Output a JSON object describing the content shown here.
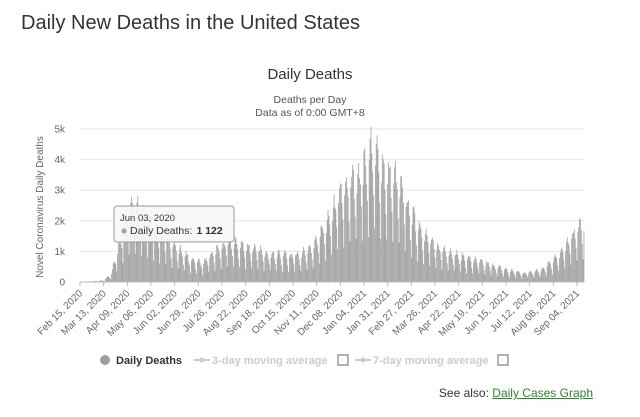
{
  "page": {
    "title": "Daily New Deaths in the United States",
    "see_also_prefix": "See also:",
    "see_also_link": "Daily Cases Graph"
  },
  "colors": {
    "bars": "#9e9e9e",
    "legend_inactive": "#cccccc",
    "link": "#2a8a1e",
    "grid": "#e6e6e6"
  },
  "chart_data": {
    "type": "bar",
    "title": "Daily Deaths",
    "subtitle_lines": [
      "Deaths per Day",
      "Data as of 0:00 GMT+8"
    ],
    "ylabel": "Novel Coronavirus Daily Deaths",
    "xlabel": "",
    "ylim": [
      0,
      5000
    ],
    "yticks": [
      0,
      1000,
      2000,
      3000,
      4000,
      5000
    ],
    "ytick_labels": [
      "0",
      "1k",
      "2k",
      "3k",
      "4k",
      "5k"
    ],
    "grid": true,
    "x_tick_labels": [
      "Feb 15, 2020",
      "Mar 13, 2020",
      "Apr 09, 2020",
      "May 06, 2020",
      "Jun 02, 2020",
      "Jun 29, 2020",
      "Jul 26, 2020",
      "Aug 22, 2020",
      "Sep 18, 2020",
      "Oct 15, 2020",
      "Nov 11, 2020",
      "Dec 08, 2020",
      "Jan 04, 2021",
      "Jan 31, 2021",
      "Feb 27, 2021",
      "Mar 26, 2021",
      "Apr 22, 2021",
      "May 19, 2021",
      "Jun 15, 2021",
      "Jul 12, 2021",
      "Aug 08, 2021",
      "Sep 04, 2021"
    ],
    "x_start": "2020-02-15",
    "x_end": "2021-09-12",
    "tick_step_days": 27,
    "trend_anchors": [
      [
        "2020-02-15",
        0
      ],
      [
        "2020-03-13",
        40
      ],
      [
        "2020-03-22",
        250
      ],
      [
        "2020-04-01",
        1200
      ],
      [
        "2020-04-09",
        1950
      ],
      [
        "2020-04-16",
        2250
      ],
      [
        "2020-04-25",
        1900
      ],
      [
        "2020-05-06",
        1800
      ],
      [
        "2020-05-20",
        1300
      ],
      [
        "2020-06-03",
        1000
      ],
      [
        "2020-06-20",
        650
      ],
      [
        "2020-07-05",
        550
      ],
      [
        "2020-07-20",
        900
      ],
      [
        "2020-08-05",
        1150
      ],
      [
        "2020-08-22",
        1000
      ],
      [
        "2020-09-18",
        800
      ],
      [
        "2020-10-15",
        760
      ],
      [
        "2020-11-01",
        850
      ],
      [
        "2020-11-11",
        1150
      ],
      [
        "2020-11-25",
        1750
      ],
      [
        "2020-12-08",
        2500
      ],
      [
        "2020-12-20",
        2800
      ],
      [
        "2021-01-04",
        3200
      ],
      [
        "2021-01-12",
        3750
      ],
      [
        "2021-01-20",
        3500
      ],
      [
        "2021-01-31",
        3000
      ],
      [
        "2021-02-10",
        2900
      ],
      [
        "2021-02-27",
        1900
      ],
      [
        "2021-03-10",
        1500
      ],
      [
        "2021-03-26",
        1000
      ],
      [
        "2021-04-22",
        750
      ],
      [
        "2021-05-19",
        550
      ],
      [
        "2021-06-15",
        350
      ],
      [
        "2021-07-05",
        250
      ],
      [
        "2021-07-12",
        280
      ],
      [
        "2021-07-25",
        350
      ],
      [
        "2021-08-08",
        600
      ],
      [
        "2021-08-22",
        1000
      ],
      [
        "2021-09-04",
        1500
      ],
      [
        "2021-09-12",
        1650
      ]
    ],
    "tooltip": {
      "date": "Jun 03, 2020",
      "series": "Daily Deaths:",
      "value": "1 122"
    },
    "legend": [
      {
        "name": "Daily Deaths",
        "active": true
      },
      {
        "name": "3-day moving average",
        "active": false
      },
      {
        "name": "7-day moving average",
        "active": false
      }
    ]
  }
}
